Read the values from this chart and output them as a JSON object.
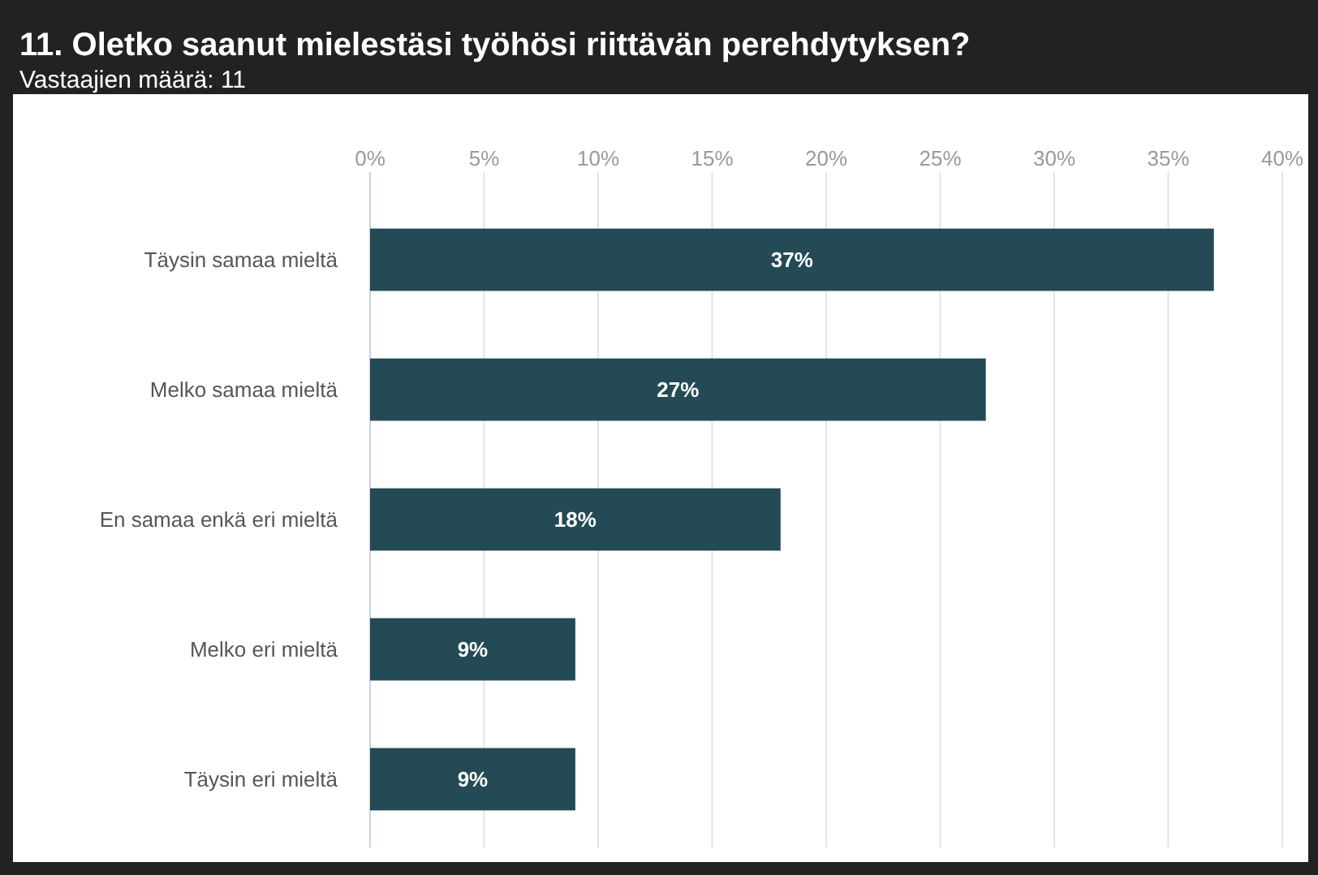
{
  "chart_data": {
    "type": "bar",
    "orientation": "horizontal",
    "title": "11. Oletko saanut mielestäsi työhösi riittävän perehdytyksen?",
    "subtitle": "Vastaajien määrä: 11",
    "categories": [
      "Täysin samaa mieltä",
      "Melko samaa mieltä",
      "En samaa enkä eri mieltä",
      "Melko eri mieltä",
      "Täysin eri mieltä"
    ],
    "values": [
      37,
      27,
      18,
      9,
      9
    ],
    "value_labels": [
      "37%",
      "27%",
      "18%",
      "9%",
      "9%"
    ],
    "color": "#234a55",
    "xlim": [
      0,
      40
    ],
    "xticks": [
      {
        "value": 0,
        "label": "0%"
      },
      {
        "value": 5,
        "label": "5%"
      },
      {
        "value": 10,
        "label": "10%"
      },
      {
        "value": 15,
        "label": "15%"
      },
      {
        "value": 20,
        "label": "20%"
      },
      {
        "value": 25,
        "label": "25%"
      },
      {
        "value": 30,
        "label": "30%"
      },
      {
        "value": 35,
        "label": "35%"
      },
      {
        "value": 40,
        "label": "40%"
      }
    ],
    "grid": "x"
  }
}
